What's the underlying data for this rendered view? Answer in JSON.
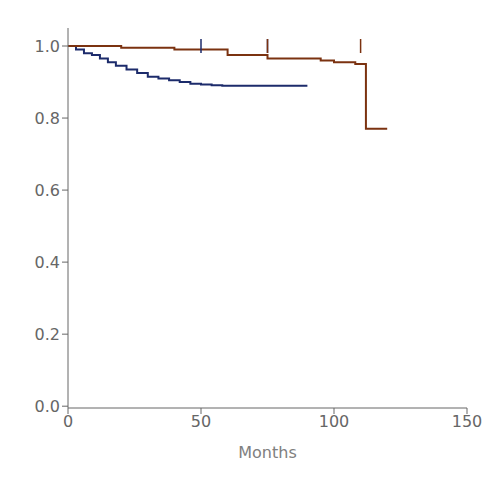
{
  "chart_data": {
    "type": "line",
    "line_style": "step",
    "xlabel": "Months",
    "series": [
      {
        "color": "#1c2b6b",
        "x": [
          0,
          3,
          6,
          9,
          12,
          15,
          18,
          22,
          26,
          30,
          34,
          38,
          42,
          46,
          50,
          54,
          58,
          62,
          66,
          70,
          75,
          80,
          85,
          90
        ],
        "values": [
          1.0,
          0.99,
          0.98,
          0.975,
          0.965,
          0.955,
          0.945,
          0.935,
          0.925,
          0.915,
          0.91,
          0.905,
          0.9,
          0.895,
          0.893,
          0.891,
          0.89,
          0.89,
          0.89,
          0.89,
          0.89,
          0.89,
          0.89,
          0.89
        ],
        "censor_x": [
          50,
          75
        ],
        "censor_y": 1.0
      },
      {
        "color": "#7b3210",
        "x": [
          0,
          8,
          20,
          40,
          60,
          75,
          95,
          100,
          108,
          112,
          120
        ],
        "values": [
          1.0,
          1.0,
          0.995,
          0.99,
          0.975,
          0.965,
          0.96,
          0.955,
          0.95,
          0.77,
          0.77
        ],
        "censor_x": [
          75,
          110
        ],
        "censor_y": 1.0
      }
    ],
    "xlim": [
      0,
      150
    ],
    "ylim": [
      -0.005,
      1.05
    ],
    "xticks": [
      0,
      50,
      100,
      150
    ],
    "yticks": [
      {
        "value": 0.0,
        "label": "0.0"
      },
      0.2,
      0.4,
      0.6,
      0.8,
      {
        "value": 1.0,
        "label": "1.0"
      }
    ]
  }
}
